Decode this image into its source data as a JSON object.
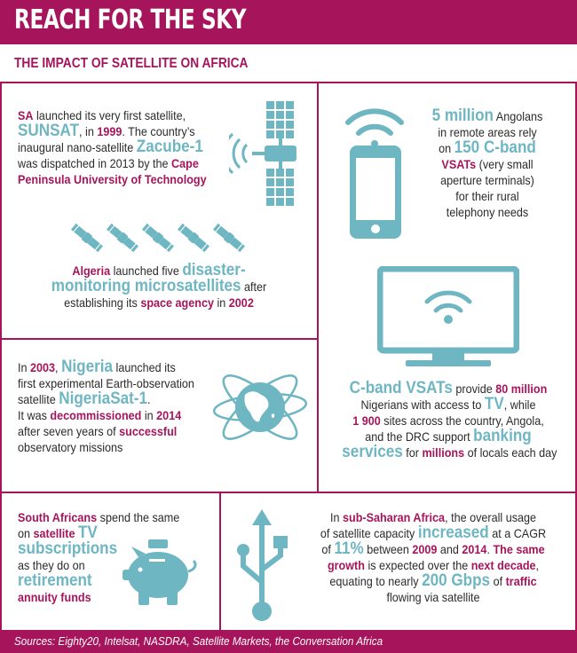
{
  "header": {
    "title": "REACH FOR THE SKY",
    "subtitle": "THE IMPACT OF SATELLITE ON AFRICA"
  },
  "panels": {
    "sa": {
      "lines": [
        [
          {
            "t": "SA",
            "s": "m"
          },
          {
            "t": " launched its very first satellite,",
            "s": ""
          }
        ],
        [
          {
            "t": "SUNSAT",
            "s": "t"
          },
          {
            "t": ", in ",
            "s": ""
          },
          {
            "t": "1999",
            "s": "m"
          },
          {
            "t": ". The country’s",
            "s": ""
          }
        ],
        [
          {
            "t": "inaugural nano-satellite ",
            "s": ""
          },
          {
            "t": "Zacube-1",
            "s": "t"
          }
        ],
        [
          {
            "t": "was dispatched in 2013 by the ",
            "s": ""
          },
          {
            "t": "Cape",
            "s": "m"
          }
        ],
        [
          {
            "t": "Peninsula University of Technology",
            "s": "m"
          }
        ]
      ]
    },
    "angola": {
      "lines": [
        [
          {
            "t": "5 million",
            "s": "t"
          },
          {
            "t": " Angolans",
            "s": ""
          }
        ],
        [
          {
            "t": "in remote areas rely",
            "s": ""
          }
        ],
        [
          {
            "t": "on ",
            "s": ""
          },
          {
            "t": "150 C-band",
            "s": "t"
          }
        ],
        [
          {
            "t": "VSATs",
            "s": "m"
          },
          {
            "t": " (very small",
            "s": ""
          }
        ],
        [
          {
            "t": "aperture terminals)",
            "s": ""
          }
        ],
        [
          {
            "t": "for their rural",
            "s": ""
          }
        ],
        [
          {
            "t": "telephony needs",
            "s": ""
          }
        ]
      ]
    },
    "algeria": {
      "lines": [
        [
          {
            "t": "Algeria",
            "s": "m"
          },
          {
            "t": " launched five ",
            "s": ""
          },
          {
            "t": "disaster-",
            "s": "t"
          }
        ],
        [
          {
            "t": "monitoring microsatellites",
            "s": "t"
          },
          {
            "t": " after",
            "s": ""
          }
        ],
        [
          {
            "t": "establishing its ",
            "s": ""
          },
          {
            "t": "space agency",
            "s": "m"
          },
          {
            "t": " in ",
            "s": ""
          },
          {
            "t": "2002",
            "s": "m"
          }
        ]
      ]
    },
    "nigeria": {
      "lines": [
        [
          {
            "t": "In ",
            "s": ""
          },
          {
            "t": "2003",
            "s": "m"
          },
          {
            "t": ", ",
            "s": ""
          },
          {
            "t": "Nigeria",
            "s": "t"
          },
          {
            "t": " launched its",
            "s": ""
          }
        ],
        [
          {
            "t": "first experimental Earth-observation",
            "s": ""
          }
        ],
        [
          {
            "t": "satellite ",
            "s": ""
          },
          {
            "t": "NigeriaSat-1",
            "s": "t"
          },
          {
            "t": ".",
            "s": ""
          }
        ],
        [
          {
            "t": "It was ",
            "s": ""
          },
          {
            "t": "decommissioned",
            "s": "m"
          },
          {
            "t": " in ",
            "s": ""
          },
          {
            "t": "2014",
            "s": "m"
          }
        ],
        [
          {
            "t": "after seven years of ",
            "s": ""
          },
          {
            "t": "successful",
            "s": "m"
          }
        ],
        [
          {
            "t": "observatory missions",
            "s": ""
          }
        ]
      ]
    },
    "cband": {
      "lines": [
        [
          {
            "t": "C-band VSATs",
            "s": "t"
          },
          {
            "t": " provide ",
            "s": ""
          },
          {
            "t": "80 million",
            "s": "m"
          }
        ],
        [
          {
            "t": "Nigerians with access to ",
            "s": ""
          },
          {
            "t": "TV",
            "s": "t"
          },
          {
            "t": ", while",
            "s": ""
          }
        ],
        [
          {
            "t": "1 900",
            "s": "m"
          },
          {
            "t": " sites across the country, Angola,",
            "s": ""
          }
        ],
        [
          {
            "t": "and the DRC support ",
            "s": ""
          },
          {
            "t": "banking",
            "s": "t"
          }
        ],
        [
          {
            "t": "services",
            "s": "t"
          },
          {
            "t": " for ",
            "s": ""
          },
          {
            "t": "millions",
            "s": "m"
          },
          {
            "t": " of locals each day",
            "s": ""
          }
        ]
      ]
    },
    "south_africans": {
      "lines": [
        [
          {
            "t": "South Africans",
            "s": "m"
          },
          {
            "t": " spend the same",
            "s": ""
          }
        ],
        [
          {
            "t": "on ",
            "s": ""
          },
          {
            "t": "satellite",
            "s": "m"
          },
          {
            "t": " ",
            "s": ""
          },
          {
            "t": "TV",
            "s": "t"
          }
        ],
        [
          {
            "t": "subscriptions",
            "s": "t"
          }
        ],
        [
          {
            "t": "as they do on",
            "s": ""
          }
        ],
        [
          {
            "t": "retirement",
            "s": "t"
          }
        ],
        [
          {
            "t": "annuity funds",
            "s": "m"
          }
        ]
      ]
    },
    "subsaharan": {
      "lines": [
        [
          {
            "t": "In ",
            "s": ""
          },
          {
            "t": "sub-Saharan Africa",
            "s": "m"
          },
          {
            "t": ", the overall usage",
            "s": ""
          }
        ],
        [
          {
            "t": "of satellite capacity ",
            "s": ""
          },
          {
            "t": "increased",
            "s": "t"
          },
          {
            "t": " at a CAGR",
            "s": ""
          }
        ],
        [
          {
            "t": "of ",
            "s": ""
          },
          {
            "t": "11%",
            "s": "t"
          },
          {
            "t": " between ",
            "s": ""
          },
          {
            "t": "2009",
            "s": "m"
          },
          {
            "t": " and ",
            "s": ""
          },
          {
            "t": "2014",
            "s": "m"
          },
          {
            "t": ". ",
            "s": ""
          },
          {
            "t": "The same",
            "s": "m"
          }
        ],
        [
          {
            "t": "growth",
            "s": "m"
          },
          {
            "t": " is expected over the ",
            "s": ""
          },
          {
            "t": "next decade",
            "s": "m"
          },
          {
            "t": ",",
            "s": ""
          }
        ],
        [
          {
            "t": "equating to nearly ",
            "s": ""
          },
          {
            "t": "200 Gbps",
            "s": "t"
          },
          {
            "t": " of ",
            "s": ""
          },
          {
            "t": "traffic",
            "s": "m"
          }
        ],
        [
          {
            "t": "flowing via satellite",
            "s": ""
          }
        ]
      ]
    }
  },
  "footer": {
    "sources": "Sources: Eighty20, Intelsat, NASDRA, Satellite Markets, the Conversation Africa"
  },
  "icons": {
    "satellite": "satellite-icon",
    "phone": "mobile-phone-icon",
    "microsatellites": "small-satellite-icon",
    "monitor": "tv-monitor-icon",
    "globe": "globe-orbit-icon",
    "piggy": "piggy-bank-icon",
    "usb": "usb-icon"
  },
  "colors": {
    "magenta": "#a6155b",
    "teal": "#6fb6c3"
  }
}
